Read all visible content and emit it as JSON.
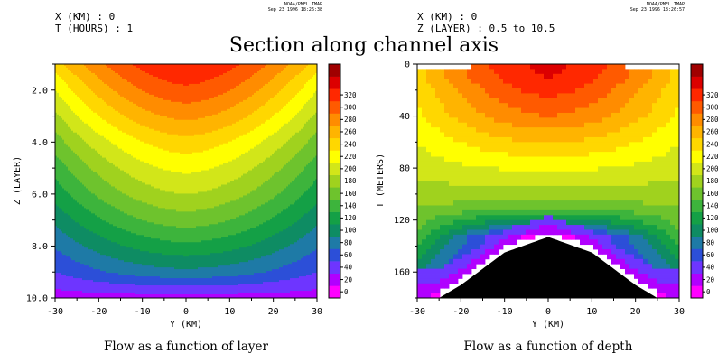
{
  "main_title": "Section along channel axis",
  "colors": [
    "#ff00ff",
    "#b100ff",
    "#6e35ff",
    "#2c4fd8",
    "#1e7aa6",
    "#0e8c63",
    "#14a046",
    "#3db43c",
    "#6ec32d",
    "#a0d21e",
    "#d2e619",
    "#ffff00",
    "#ffd700",
    "#ffb400",
    "#ff8c00",
    "#ff5a00",
    "#ff2800",
    "#dc0000",
    "#a00000"
  ],
  "colorbar_labels": [
    "0",
    "20",
    "40",
    "60",
    "80",
    "100",
    "120",
    "140",
    "160",
    "180",
    "200",
    "220",
    "240",
    "260",
    "280",
    "300",
    "320"
  ],
  "panels": [
    {
      "header_line1": "X (KM) : 0",
      "header_line2": "T (HOURS) : 1",
      "stamp_line1": "NOAA/PMEL TMAP",
      "stamp_line2": "Sep 23 1996 18:26:38",
      "caption": "Flow as a function of layer",
      "xlabel": "Y (KM)",
      "ylabel": "Z (LAYER)",
      "xticks": [
        "-30",
        "-20",
        "-10",
        "0",
        "10",
        "20",
        "30"
      ],
      "yticks": [
        "2.0",
        "4.0",
        "6.0",
        "8.0",
        "10.0"
      ]
    },
    {
      "header_line1": "X (KM) : 0",
      "header_line2": "Z (LAYER) : 0.5 to 10.5",
      "stamp_line1": "NOAA/PMEL TMAP",
      "stamp_line2": "Sep 23 1996 18:26:57",
      "caption": "Flow as a function of depth",
      "xlabel": "Y (KM)",
      "ylabel": "T (METERS)",
      "xticks": [
        "-30",
        "-20",
        "-10",
        "0",
        "10",
        "20",
        "30"
      ],
      "yticks": [
        "0",
        "40",
        "80",
        "120",
        "160"
      ]
    }
  ],
  "chart_data": [
    {
      "type": "heatmap",
      "title": "Flow as a function of layer",
      "xlabel": "Y (KM)",
      "ylabel": "Z (LAYER)",
      "xlim": [
        -30,
        30
      ],
      "ylim": [
        10,
        1
      ],
      "field": "approx. flow speed, max about 320 at Y=0 near layer 1, decreasing with depth and toward the channel walls",
      "center_profile": {
        "z": [
          1,
          2,
          3,
          4,
          5,
          6,
          7,
          8,
          9,
          10
        ],
        "value": [
          320,
          295,
          265,
          232,
          205,
          180,
          150,
          115,
          75,
          10
        ]
      },
      "wall_profile": {
        "z": [
          1,
          2,
          3,
          4,
          5,
          6,
          7,
          8,
          9,
          10
        ],
        "value": [
          230,
          200,
          175,
          150,
          128,
          108,
          85,
          62,
          40,
          10
        ]
      },
      "colorbar": {
        "min": 0,
        "max": 320,
        "step": 20
      }
    },
    {
      "type": "heatmap",
      "title": "Flow as a function of depth",
      "xlabel": "Y (KM)",
      "ylabel": "T (METERS)",
      "xlim": [
        -30,
        30
      ],
      "ylim": [
        180,
        0
      ],
      "field": "same flow regridded to depth in meters; black bottom topography peaks near depth 133 m at Y=0",
      "bottom_depth": {
        "y": [
          -25,
          -20,
          -10,
          0,
          10,
          20,
          25
        ],
        "depth": [
          180,
          170,
          145,
          133,
          145,
          170,
          180
        ]
      },
      "colorbar": {
        "min": 0,
        "max": 320,
        "step": 20
      }
    }
  ]
}
